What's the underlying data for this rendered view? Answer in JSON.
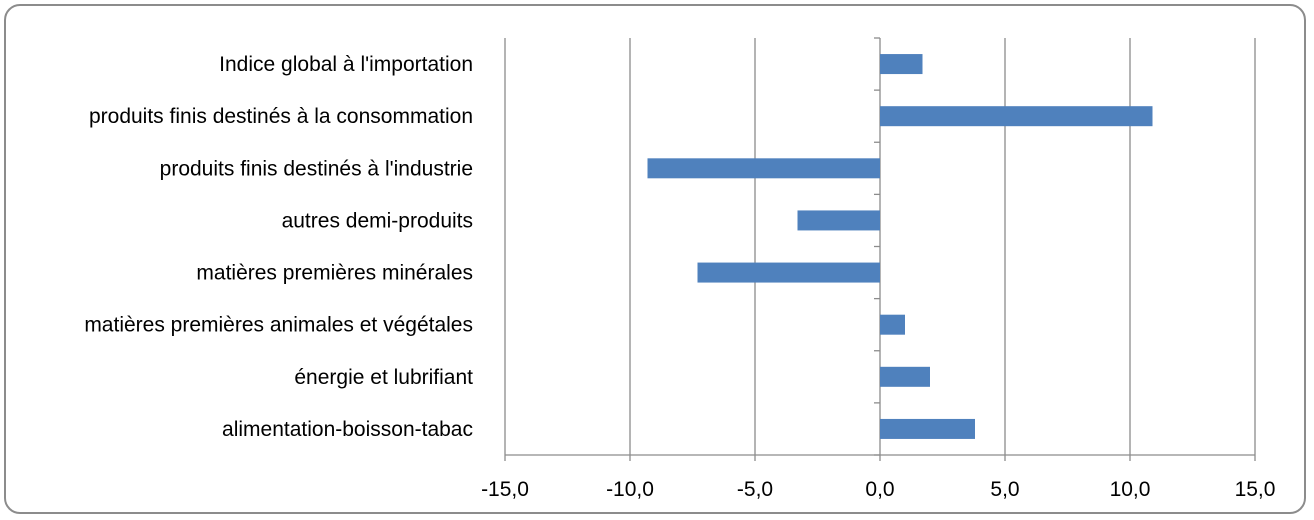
{
  "chart_data": {
    "type": "bar",
    "orientation": "horizontal",
    "categories": [
      "Indice global à l'importation",
      "produits finis destinés à la consommation",
      "produits finis destinés à l'industrie",
      "autres demi-produits",
      "matières premières minérales",
      "matières premières animales et végétales",
      "énergie et lubrifiant",
      "alimentation-boisson-tabac"
    ],
    "values": [
      1.7,
      10.9,
      -9.3,
      -3.3,
      -7.3,
      1.0,
      2.0,
      3.8
    ],
    "xlim": [
      -15,
      15
    ],
    "xticks": [
      -15,
      -10,
      -5,
      0,
      5,
      10,
      15
    ],
    "xtick_labels": [
      "-15,0",
      "-10,0",
      "-5,0",
      "0,0",
      "5,0",
      "10,0",
      "15,0"
    ],
    "title": "",
    "xlabel": "",
    "ylabel": "",
    "grid": "vertical major gridlines",
    "legend": "none",
    "bar_color": "#4f81bd"
  }
}
